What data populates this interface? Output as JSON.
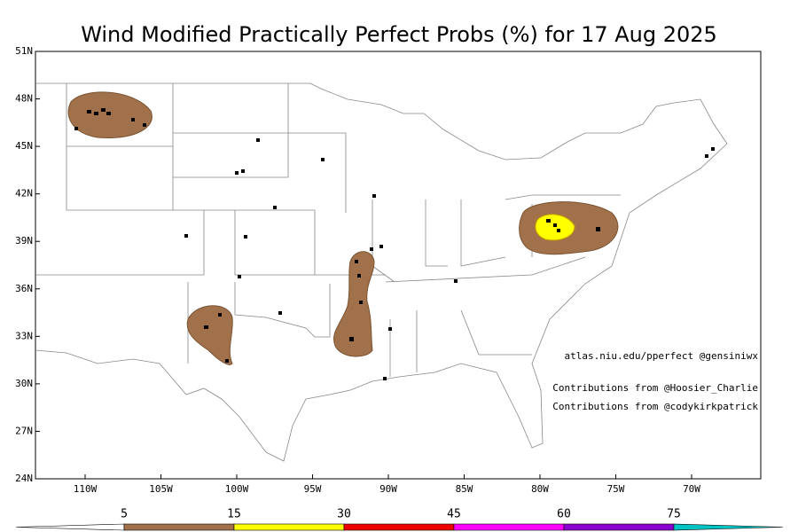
{
  "title": "Wind Modified Practically Perfect Probs (%) for 17 Aug 2025",
  "map": {
    "lon_ticks": [
      {
        "value": -110,
        "label": "110W"
      },
      {
        "value": -105,
        "label": "105W"
      },
      {
        "value": -100,
        "label": "100W"
      },
      {
        "value": -95,
        "label": "95W"
      },
      {
        "value": -90,
        "label": "90W"
      },
      {
        "value": -85,
        "label": "85W"
      },
      {
        "value": -80,
        "label": "80W"
      },
      {
        "value": -75,
        "label": "75W"
      },
      {
        "value": -70,
        "label": "70W"
      }
    ],
    "lat_ticks": [
      {
        "value": 24,
        "label": "24N"
      },
      {
        "value": 27,
        "label": "27N"
      },
      {
        "value": 30,
        "label": "30N"
      },
      {
        "value": 33,
        "label": "33N"
      },
      {
        "value": 36,
        "label": "36N"
      },
      {
        "value": 39,
        "label": "39N"
      },
      {
        "value": 42,
        "label": "42N"
      },
      {
        "value": 45,
        "label": "45N"
      },
      {
        "value": 48,
        "label": "48N"
      },
      {
        "value": 51,
        "label": "51N"
      }
    ]
  },
  "credits": [
    "atlas.niu.edu/pperfect @gensiniwx",
    "Contributions from @Hoosier_Charlie",
    "Contributions from @codykirkpatrick"
  ],
  "colorbar": {
    "levels": [
      5,
      15,
      30,
      45,
      60,
      75
    ],
    "colors": [
      "#ffffff",
      "#a0714a",
      "#ffff00",
      "#ee0000",
      "#ff00ff",
      "#8a00d0",
      "#00c4c4"
    ]
  }
}
